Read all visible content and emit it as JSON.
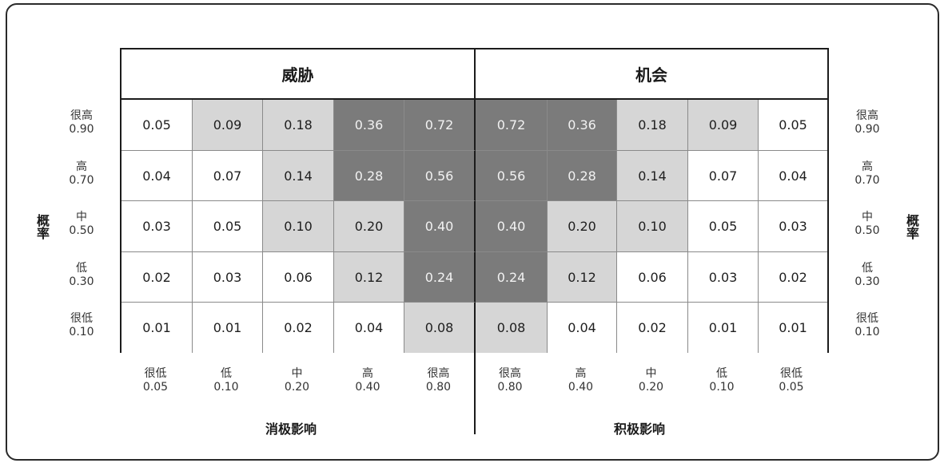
{
  "threat_title": "威胁",
  "opportunity_title": "机会",
  "probability_left": "概率",
  "probability_right": "概率",
  "negative_impact": "消极影响",
  "positive_impact": "积极影响",
  "rows": [
    {
      "label": "很高",
      "value": "0.90",
      "cells": [
        "0.05",
        "0.09",
        "0.18",
        "0.36",
        "0.72",
        "0.72",
        "0.36",
        "0.18",
        "0.09",
        "0.05"
      ]
    },
    {
      "label": "高",
      "value": "0.70",
      "cells": [
        "0.04",
        "0.07",
        "0.14",
        "0.28",
        "0.56",
        "0.56",
        "0.28",
        "0.14",
        "0.07",
        "0.04"
      ]
    },
    {
      "label": "中",
      "value": "0.50",
      "cells": [
        "0.03",
        "0.05",
        "0.10",
        "0.20",
        "0.40",
        "0.40",
        "0.20",
        "0.10",
        "0.05",
        "0.03"
      ]
    },
    {
      "label": "低",
      "value": "0.30",
      "cells": [
        "0.02",
        "0.03",
        "0.06",
        "0.12",
        "0.24",
        "0.24",
        "0.12",
        "0.06",
        "0.03",
        "0.02"
      ]
    },
    {
      "label": "很低",
      "value": "0.10",
      "cells": [
        "0.01",
        "0.01",
        "0.02",
        "0.04",
        "0.08",
        "0.08",
        "0.04",
        "0.02",
        "0.01",
        "0.01"
      ]
    }
  ],
  "shading": [
    [
      "white",
      "light",
      "light",
      "dark",
      "dark",
      "dark",
      "dark",
      "light",
      "light",
      "white"
    ],
    [
      "white",
      "white",
      "light",
      "dark",
      "dark",
      "dark",
      "dark",
      "light",
      "white",
      "white"
    ],
    [
      "white",
      "white",
      "light",
      "light",
      "dark",
      "dark",
      "light",
      "light",
      "white",
      "white"
    ],
    [
      "white",
      "white",
      "white",
      "light",
      "dark",
      "dark",
      "light",
      "white",
      "white",
      "white"
    ],
    [
      "white",
      "white",
      "white",
      "white",
      "light",
      "light",
      "white",
      "white",
      "white",
      "white"
    ]
  ],
  "columns": [
    {
      "label": "很低",
      "value": "0.05"
    },
    {
      "label": "低",
      "value": "0.10"
    },
    {
      "label": "中",
      "value": "0.20"
    },
    {
      "label": "高",
      "value": "0.40"
    },
    {
      "label": "很高",
      "value": "0.80"
    },
    {
      "label": "很高",
      "value": "0.80"
    },
    {
      "label": "高",
      "value": "0.40"
    },
    {
      "label": "中",
      "value": "0.20"
    },
    {
      "label": "低",
      "value": "0.10"
    },
    {
      "label": "很低",
      "value": "0.05"
    }
  ],
  "colors": {
    "white": "#ffffff",
    "light": "#d6d6d6",
    "dark": "#7b7b7b"
  }
}
